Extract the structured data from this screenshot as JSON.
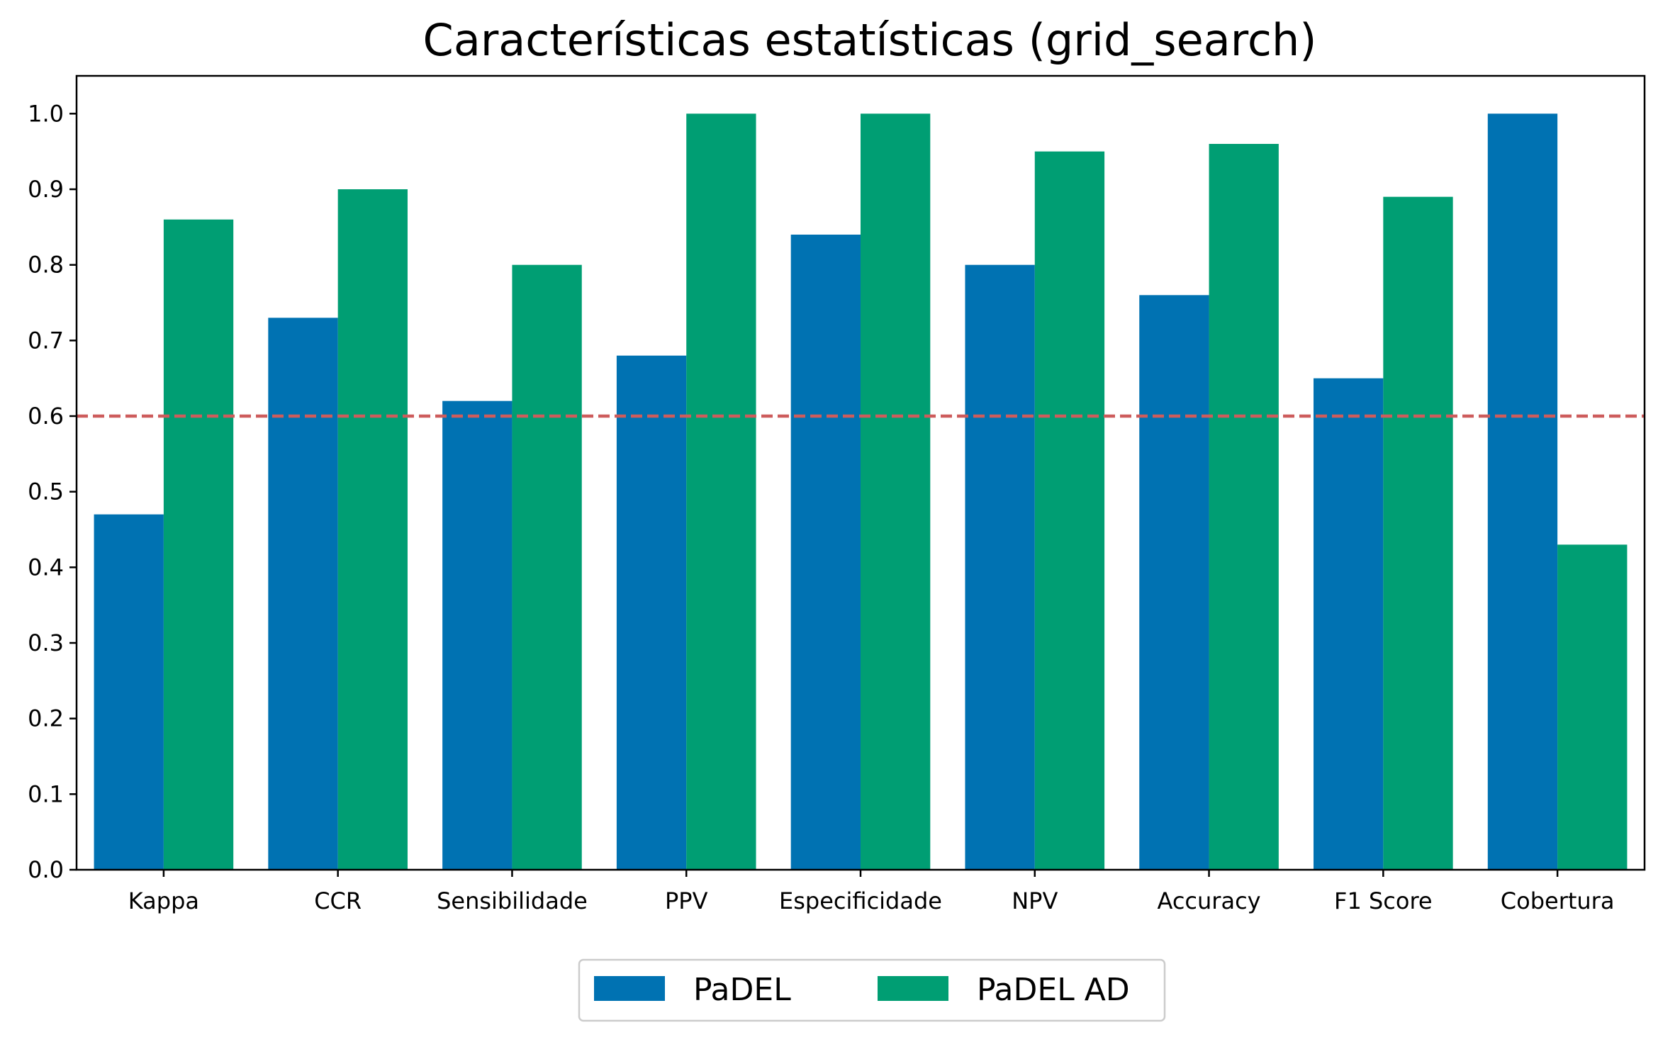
{
  "chart_data": {
    "type": "bar",
    "title": "Características estatísticas (grid_search)",
    "xlabel": "",
    "ylabel": "",
    "categories": [
      "Kappa",
      "CCR",
      "Sensibilidade",
      "PPV",
      "Especificidade",
      "NPV",
      "Accuracy",
      "F1 Score",
      "Cobertura"
    ],
    "series": [
      {
        "name": "PaDEL",
        "color": "#0072B2",
        "values": [
          0.47,
          0.73,
          0.62,
          0.68,
          0.84,
          0.8,
          0.76,
          0.65,
          1.0
        ]
      },
      {
        "name": "PaDEL AD",
        "color": "#009E73",
        "values": [
          0.86,
          0.9,
          0.8,
          1.0,
          1.0,
          0.95,
          0.96,
          0.89,
          0.43
        ]
      }
    ],
    "ylim": [
      0,
      1.05
    ],
    "yticks": [
      "0.0",
      "0.1",
      "0.2",
      "0.3",
      "0.4",
      "0.5",
      "0.6",
      "0.7",
      "0.8",
      "0.9",
      "1.0"
    ],
    "reference_line": {
      "value": 0.6,
      "color": "#CD5C5C",
      "style": "dashed"
    },
    "grid": false,
    "legend_position": "bottom-center"
  }
}
